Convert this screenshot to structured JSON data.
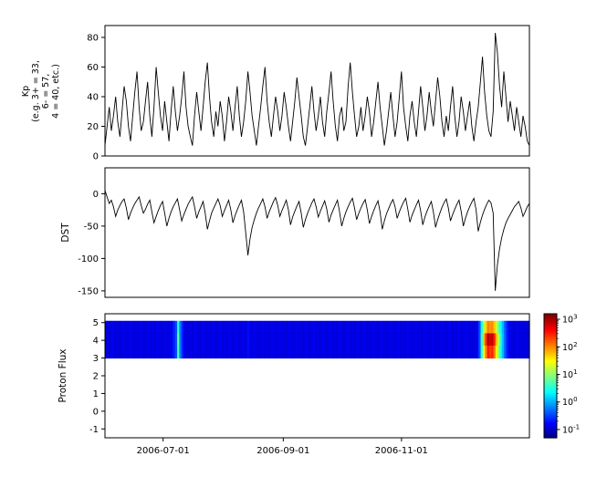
{
  "x_axis": {
    "range_days": [
      0,
      219
    ],
    "tick_days": [
      30,
      92,
      153
    ],
    "tick_labels": [
      "2006-07-01",
      "2006-09-01",
      "2006-11-01"
    ]
  },
  "colorbar": {
    "base_label": "10",
    "tick_exponents": [
      3,
      2,
      1,
      0,
      -1
    ],
    "scale": "log"
  },
  "chart_data": [
    {
      "id": "kp",
      "type": "line",
      "ylabel_lines": [
        "Kp",
        "(e.g. 3+ = 33,",
        "6- = 57,",
        "4 = 40, etc.)"
      ],
      "ylim": [
        0,
        88
      ],
      "yticks": [
        0,
        20,
        40,
        60,
        80
      ],
      "x_range_days": [
        0,
        219
      ],
      "line_color": "#000000",
      "values": [
        7,
        20,
        33,
        17,
        27,
        40,
        23,
        13,
        30,
        47,
        37,
        20,
        10,
        27,
        43,
        57,
        33,
        17,
        23,
        37,
        50,
        27,
        13,
        33,
        60,
        43,
        27,
        17,
        37,
        23,
        10,
        30,
        47,
        30,
        17,
        27,
        40,
        57,
        33,
        20,
        13,
        7,
        27,
        43,
        30,
        17,
        33,
        50,
        63,
        40,
        23,
        13,
        30,
        20,
        37,
        27,
        10,
        23,
        40,
        30,
        17,
        33,
        47,
        27,
        13,
        23,
        37,
        57,
        43,
        27,
        17,
        7,
        20,
        33,
        47,
        60,
        37,
        23,
        13,
        27,
        40,
        30,
        17,
        27,
        43,
        33,
        20,
        10,
        23,
        37,
        53,
        40,
        27,
        13,
        7,
        20,
        33,
        47,
        30,
        17,
        27,
        40,
        23,
        13,
        30,
        43,
        57,
        37,
        20,
        10,
        27,
        33,
        17,
        23,
        47,
        63,
        43,
        27,
        13,
        20,
        33,
        17,
        27,
        40,
        30,
        13,
        23,
        37,
        50,
        33,
        20,
        7,
        17,
        30,
        43,
        27,
        13,
        23,
        40,
        57,
        33,
        20,
        10,
        27,
        37,
        23,
        13,
        30,
        47,
        33,
        17,
        27,
        43,
        30,
        20,
        37,
        53,
        40,
        23,
        13,
        27,
        17,
        33,
        47,
        27,
        13,
        23,
        40,
        30,
        17,
        27,
        37,
        20,
        10,
        23,
        33,
        50,
        67,
        43,
        27,
        17,
        13,
        30,
        83,
        70,
        47,
        33,
        57,
        40,
        23,
        37,
        27,
        17,
        33,
        23,
        13,
        27,
        20,
        10,
        7
      ]
    },
    {
      "id": "dst",
      "type": "line",
      "ylabel": "DST",
      "ylim": [
        -160,
        40
      ],
      "yticks": [
        0,
        -50,
        -100,
        -150
      ],
      "x_range_days": [
        0,
        219
      ],
      "line_color": "#000000",
      "values": [
        5,
        -5,
        -15,
        -10,
        -20,
        -35,
        -25,
        -18,
        -12,
        -8,
        -22,
        -40,
        -30,
        -22,
        -15,
        -10,
        -5,
        -18,
        -30,
        -24,
        -16,
        -10,
        -28,
        -45,
        -35,
        -26,
        -18,
        -12,
        -30,
        -50,
        -38,
        -28,
        -20,
        -14,
        -8,
        -25,
        -42,
        -32,
        -24,
        -16,
        -10,
        -5,
        -20,
        -38,
        -28,
        -20,
        -12,
        -30,
        -55,
        -42,
        -30,
        -22,
        -15,
        -8,
        -18,
        -35,
        -26,
        -18,
        -10,
        -25,
        -45,
        -34,
        -25,
        -17,
        -10,
        -28,
        -60,
        -95,
        -70,
        -52,
        -40,
        -30,
        -22,
        -15,
        -8,
        -20,
        -38,
        -28,
        -20,
        -12,
        -6,
        -18,
        -35,
        -26,
        -18,
        -10,
        -25,
        -48,
        -36,
        -27,
        -19,
        -12,
        -30,
        -52,
        -40,
        -30,
        -22,
        -14,
        -8,
        -20,
        -36,
        -27,
        -19,
        -11,
        -24,
        -44,
        -33,
        -25,
        -17,
        -10,
        -28,
        -50,
        -38,
        -28,
        -20,
        -13,
        -7,
        -22,
        -40,
        -30,
        -22,
        -15,
        -9,
        -25,
        -46,
        -35,
        -26,
        -18,
        -11,
        -28,
        -55,
        -42,
        -31,
        -23,
        -15,
        -9,
        -20,
        -38,
        -28,
        -20,
        -13,
        -7,
        -24,
        -44,
        -33,
        -25,
        -17,
        -10,
        -26,
        -48,
        -36,
        -27,
        -19,
        -12,
        -28,
        -52,
        -40,
        -30,
        -21,
        -14,
        -8,
        -22,
        -42,
        -32,
        -24,
        -16,
        -10,
        -27,
        -50,
        -38,
        -28,
        -20,
        -13,
        -7,
        -25,
        -58,
        -44,
        -33,
        -24,
        -16,
        -10,
        -14,
        -30,
        -150,
        -110,
        -85,
        -68,
        -55,
        -45,
        -38,
        -32,
        -26,
        -20,
        -16,
        -12,
        -22,
        -35,
        -28,
        -20,
        -15
      ]
    },
    {
      "id": "proton_flux",
      "type": "heatmap",
      "ylabel": "Proton Flux",
      "ylim": [
        -1.5,
        5.5
      ],
      "yticks": [
        5,
        4,
        3,
        2,
        1,
        0,
        -1
      ],
      "band_y": [
        3.0,
        5.1
      ],
      "row_scales": [
        0.7,
        1.0,
        0.85
      ],
      "colormap": "jet",
      "clim_log10": [
        -1.3,
        3.2
      ],
      "x_range_days": [
        0,
        219
      ],
      "log10_values": [
        -0.9,
        -0.85,
        -0.9,
        -0.8,
        -0.9,
        -0.85,
        -0.9,
        -0.9,
        -0.8,
        -0.85,
        -0.9,
        -0.85,
        -0.8,
        -0.9,
        -0.85,
        -0.9,
        -0.8,
        -0.85,
        -0.9,
        -0.85,
        -0.8,
        -0.9,
        -0.85,
        -0.9,
        -0.8,
        -0.85,
        -0.9,
        -0.85,
        -0.8,
        -0.9,
        -0.85,
        -0.8,
        -0.6,
        -0.4,
        0.8,
        -0.2,
        -0.6,
        -0.8,
        -0.85,
        -0.9,
        -0.85,
        -0.9,
        -0.8,
        -0.85,
        -0.9,
        -0.85,
        -0.8,
        -0.9,
        -0.85,
        -0.9,
        -0.8,
        -0.85,
        -0.9,
        -0.85,
        -0.8,
        -0.9,
        -0.85,
        -0.9,
        -0.8,
        -0.85,
        -0.9,
        -0.8,
        -0.85,
        -0.9,
        -0.85,
        -0.8,
        -0.9,
        -0.7,
        -0.85,
        -0.9,
        -0.8,
        -0.85,
        -0.9,
        -0.85,
        -0.8,
        -0.9,
        -0.85,
        -0.9,
        -0.8,
        -0.85,
        -0.9,
        -0.85,
        -0.8,
        -0.9,
        -0.85,
        -0.9,
        -0.8,
        -0.85,
        -0.9,
        -0.85,
        -0.8,
        -0.9,
        -0.85,
        -0.9,
        -0.8,
        -0.85,
        -0.9,
        -0.85,
        -0.8,
        -0.9,
        -0.85,
        -0.9,
        -0.8,
        -0.85,
        -0.9,
        -0.85,
        -0.8,
        -0.9,
        -0.85,
        -0.9,
        -0.8,
        -0.85,
        -0.9,
        -0.85,
        -0.8,
        -0.9,
        -0.85,
        -0.9,
        -0.8,
        -0.85,
        -0.9,
        -0.85,
        -0.8,
        -0.9,
        -0.85,
        -0.9,
        -0.8,
        -0.85,
        -0.9,
        -0.85,
        -0.8,
        -0.9,
        -0.85,
        -0.9,
        -0.8,
        -0.85,
        -0.9,
        -0.85,
        -0.8,
        -0.9,
        -0.85,
        -0.9,
        -0.8,
        -0.85,
        -0.9,
        -0.85,
        -0.8,
        -0.9,
        -0.85,
        -0.9,
        -0.8,
        -0.85,
        -0.9,
        -0.85,
        -0.8,
        -0.9,
        -0.85,
        -0.9,
        -0.8,
        -0.85,
        -0.9,
        -0.85,
        -0.8,
        -0.9,
        -0.85,
        -0.9,
        -0.8,
        -0.85,
        -0.9,
        -0.85,
        -0.8,
        -0.9,
        -0.85,
        -0.9,
        -0.85,
        -0.8,
        -0.4,
        0.6,
        1.8,
        2.4,
        3.0,
        2.8,
        2.9,
        2.5,
        1.8,
        1.2,
        0.6,
        0.1,
        -0.3,
        -0.6,
        -0.8,
        -0.85,
        -0.9,
        -0.85,
        -0.8,
        -0.9,
        -0.85,
        -0.9,
        -0.85,
        -0.9
      ]
    }
  ]
}
